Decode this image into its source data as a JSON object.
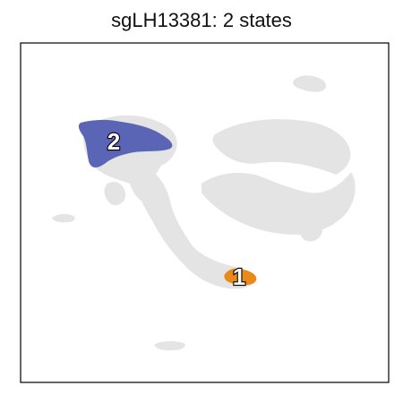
{
  "title": "sgLH13381: 2 states",
  "chart_data": {
    "type": "scatter",
    "title": "sgLH13381: 2 states",
    "xlabel": "",
    "ylabel": "",
    "grid": false,
    "background_color": "#e4e4e4",
    "states": [
      {
        "label": "1",
        "color": "#e8891a"
      },
      {
        "label": "2",
        "color": "#5b65b5"
      }
    ]
  }
}
